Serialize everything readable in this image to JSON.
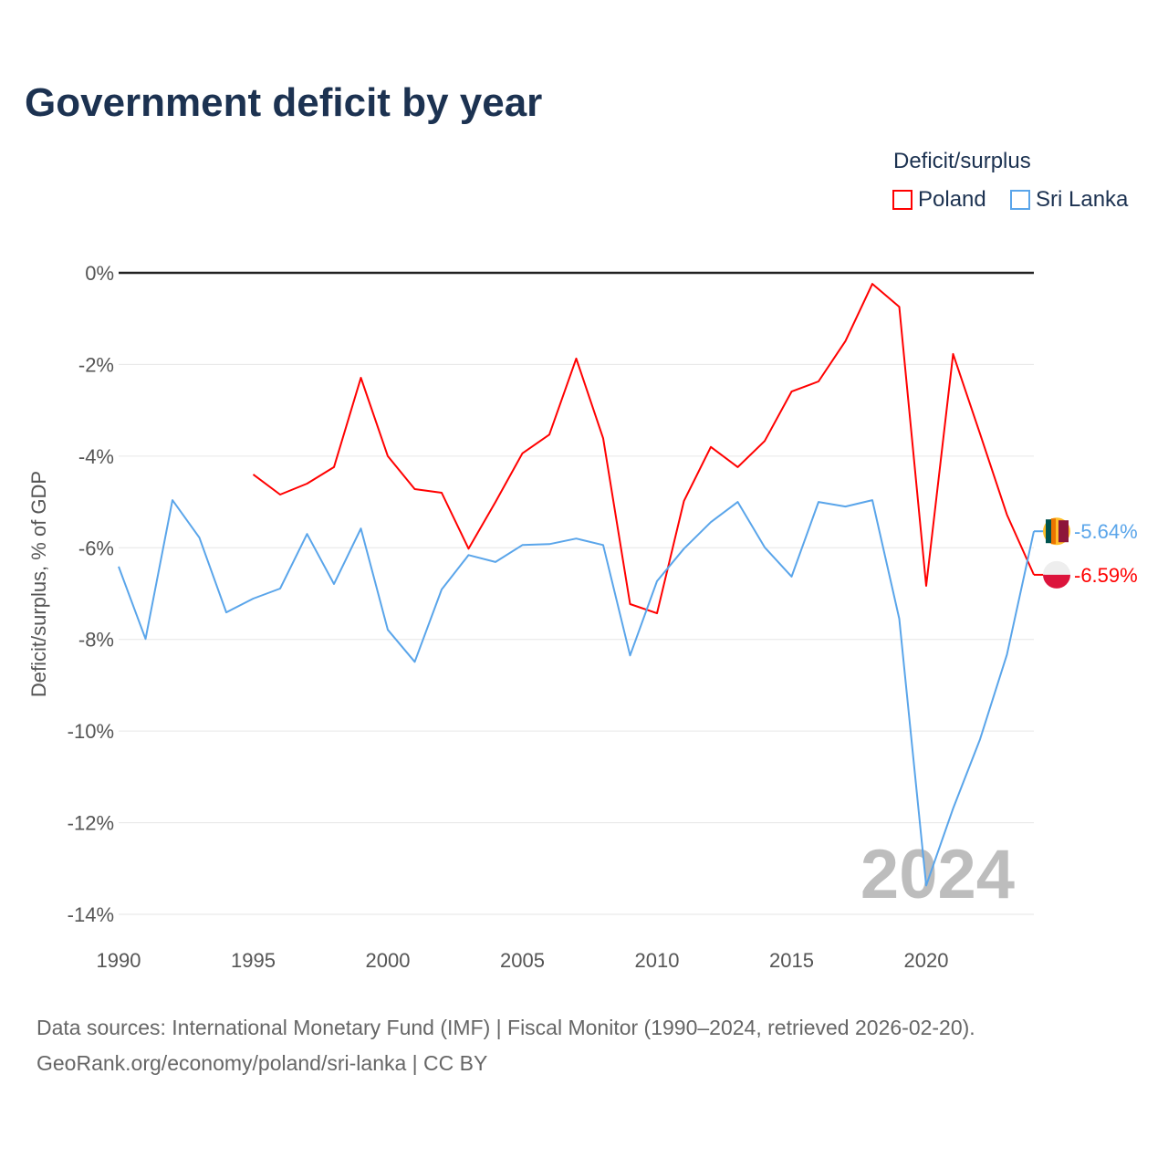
{
  "chart_data": {
    "type": "line",
    "title": "Government deficit by year",
    "ylabel": "Deficit/surplus, % of GDP",
    "xlabel": "",
    "legend_title": "Deficit/surplus",
    "legend_position": "top-right",
    "xlim": [
      1990,
      2024
    ],
    "ylim": [
      -14,
      0
    ],
    "x_ticks": [
      "1990",
      "1995",
      "2000",
      "2005",
      "2010",
      "2015",
      "2020"
    ],
    "y_ticks": [
      "0%",
      "-2%",
      "-4%",
      "-6%",
      "-8%",
      "-10%",
      "-12%",
      "-14%"
    ],
    "watermark_year": "2024",
    "grid": true,
    "series": [
      {
        "name": "Poland",
        "color": "#ff0000",
        "start_year": 1995,
        "values": [
          -4.4,
          -4.84,
          -4.6,
          -4.24,
          -2.29,
          -4.0,
          -4.72,
          -4.8,
          -6.02,
          -5.0,
          -3.94,
          -3.53,
          -1.87,
          -3.61,
          -7.23,
          -7.43,
          -4.98,
          -3.8,
          -4.24,
          -3.67,
          -2.59,
          -2.37,
          -1.49,
          -0.24,
          -0.74,
          -6.83,
          -1.77,
          -3.51,
          -5.28,
          -6.59
        ],
        "end_label": "-6.59%"
      },
      {
        "name": "Sri Lanka",
        "color": "#5aa5ea",
        "start_year": 1990,
        "values": [
          -6.41,
          -7.99,
          -4.96,
          -5.78,
          -7.41,
          -7.11,
          -6.89,
          -5.7,
          -6.79,
          -5.58,
          -7.79,
          -8.49,
          -6.91,
          -6.16,
          -6.31,
          -5.94,
          -5.92,
          -5.8,
          -5.94,
          -8.35,
          -6.73,
          -6.02,
          -5.44,
          -5.0,
          -5.99,
          -6.63,
          -5.0,
          -5.1,
          -4.96,
          -7.55,
          -13.37,
          -11.69,
          -10.18,
          -8.33,
          -5.64
        ],
        "end_label": "-5.64%"
      }
    ]
  },
  "footer": {
    "line1": "Data sources: International Monetary Fund (IMF) | Fiscal Monitor (1990–2024, retrieved 2026-02-20).",
    "line2": "GeoRank.org/economy/poland/sri-lanka | CC BY"
  }
}
